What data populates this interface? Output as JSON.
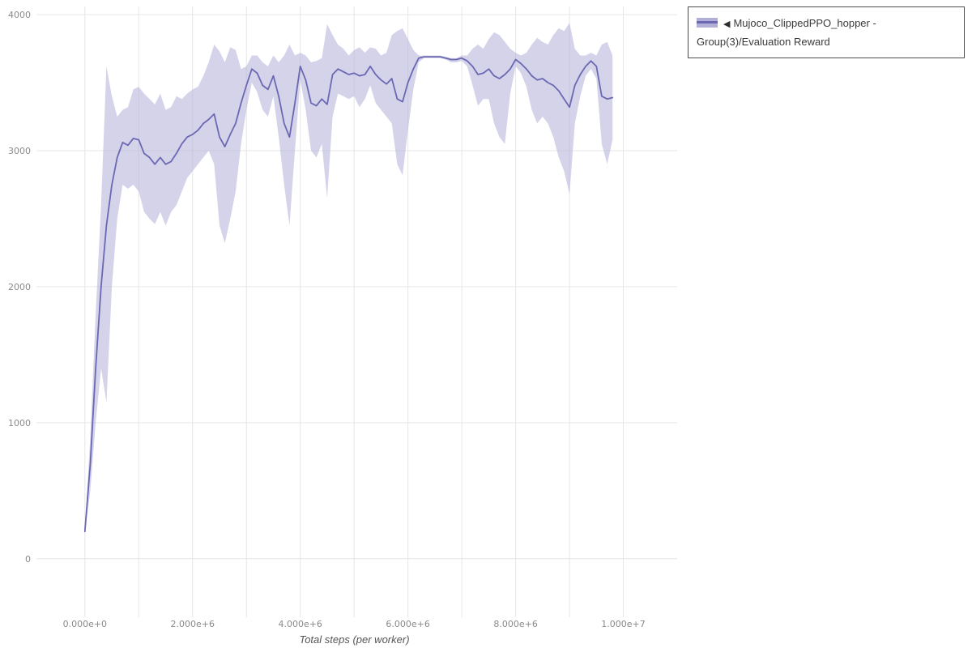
{
  "chart_data": {
    "type": "line",
    "title": "",
    "xlabel": "Total steps (per worker)",
    "ylabel": "",
    "grid": true,
    "legend_position": "top-right",
    "x_unit_multiplier": 1000000,
    "xlim": [
      -0.9,
      11.0
    ],
    "ylim": [
      -430,
      4060
    ],
    "x_ticks": [
      {
        "value": 0,
        "label": "0.000e+0"
      },
      {
        "value": 2,
        "label": "2.000e+6"
      },
      {
        "value": 4,
        "label": "4.000e+6"
      },
      {
        "value": 6,
        "label": "6.000e+6"
      },
      {
        "value": 8,
        "label": "8.000e+6"
      },
      {
        "value": 10,
        "label": "1.000e+7"
      }
    ],
    "y_ticks": [
      {
        "value": 0,
        "label": "0"
      },
      {
        "value": 1000,
        "label": "1000"
      },
      {
        "value": 2000,
        "label": "2000"
      },
      {
        "value": 3000,
        "label": "3000"
      },
      {
        "value": 4000,
        "label": "4000"
      }
    ],
    "series": [
      {
        "name": "Mujoco_ClippedPPO_hopper - Group(3)/Evaluation Reward",
        "color": "#6b68b2",
        "band_color": "#b1aed8",
        "band_opacity": 0.55,
        "x": [
          0.0,
          0.1,
          0.2,
          0.3,
          0.4,
          0.5,
          0.6,
          0.7,
          0.8,
          0.9,
          1.0,
          1.1,
          1.2,
          1.3,
          1.4,
          1.5,
          1.6,
          1.7,
          1.8,
          1.9,
          2.0,
          2.1,
          2.2,
          2.3,
          2.4,
          2.5,
          2.6,
          2.7,
          2.8,
          2.9,
          3.0,
          3.1,
          3.2,
          3.3,
          3.4,
          3.5,
          3.6,
          3.7,
          3.8,
          3.9,
          4.0,
          4.1,
          4.2,
          4.3,
          4.4,
          4.5,
          4.6,
          4.7,
          4.8,
          4.9,
          5.0,
          5.1,
          5.2,
          5.3,
          5.4,
          5.5,
          5.6,
          5.7,
          5.8,
          5.9,
          6.0,
          6.1,
          6.2,
          6.3,
          6.4,
          6.5,
          6.6,
          6.7,
          6.8,
          6.9,
          7.0,
          7.1,
          7.2,
          7.3,
          7.4,
          7.5,
          7.6,
          7.7,
          7.8,
          7.9,
          8.0,
          8.1,
          8.2,
          8.3,
          8.4,
          8.5,
          8.6,
          8.7,
          8.8,
          8.9,
          9.0,
          9.1,
          9.2,
          9.3,
          9.4,
          9.5,
          9.6,
          9.7,
          9.8
        ],
        "mean": [
          200,
          700,
          1400,
          2000,
          2450,
          2750,
          2950,
          3060,
          3040,
          3090,
          3080,
          2980,
          2950,
          2900,
          2950,
          2900,
          2920,
          2980,
          3050,
          3100,
          3120,
          3150,
          3200,
          3230,
          3270,
          3100,
          3030,
          3120,
          3200,
          3350,
          3480,
          3600,
          3570,
          3480,
          3450,
          3550,
          3400,
          3200,
          3100,
          3350,
          3620,
          3520,
          3350,
          3330,
          3380,
          3340,
          3560,
          3600,
          3580,
          3560,
          3570,
          3550,
          3560,
          3620,
          3560,
          3520,
          3490,
          3530,
          3380,
          3360,
          3500,
          3600,
          3680,
          3690,
          3690,
          3690,
          3690,
          3680,
          3670,
          3670,
          3680,
          3660,
          3620,
          3560,
          3570,
          3600,
          3550,
          3530,
          3560,
          3600,
          3670,
          3640,
          3600,
          3550,
          3520,
          3530,
          3500,
          3480,
          3440,
          3380,
          3320,
          3480,
          3560,
          3620,
          3660,
          3620,
          3400,
          3380,
          3390
        ],
        "low": [
          190,
          500,
          1000,
          1400,
          1150,
          2000,
          2500,
          2750,
          2720,
          2750,
          2700,
          2550,
          2500,
          2460,
          2550,
          2450,
          2550,
          2600,
          2700,
          2800,
          2850,
          2900,
          2950,
          3000,
          2900,
          2450,
          2320,
          2500,
          2700,
          3050,
          3300,
          3500,
          3430,
          3300,
          3250,
          3400,
          3100,
          2750,
          2450,
          3000,
          3520,
          3300,
          3000,
          2950,
          3050,
          2650,
          3250,
          3420,
          3400,
          3380,
          3400,
          3320,
          3380,
          3480,
          3350,
          3300,
          3250,
          3200,
          2900,
          2820,
          3150,
          3450,
          3650,
          3680,
          3680,
          3680,
          3680,
          3670,
          3650,
          3650,
          3660,
          3620,
          3480,
          3330,
          3380,
          3380,
          3200,
          3100,
          3050,
          3420,
          3620,
          3570,
          3470,
          3300,
          3200,
          3250,
          3200,
          3100,
          2950,
          2850,
          2680,
          3200,
          3400,
          3550,
          3600,
          3530,
          3050,
          2900,
          3080
        ],
        "high": [
          210,
          900,
          1800,
          2600,
          3620,
          3400,
          3250,
          3300,
          3320,
          3450,
          3470,
          3420,
          3380,
          3340,
          3420,
          3300,
          3320,
          3400,
          3380,
          3420,
          3450,
          3470,
          3550,
          3650,
          3780,
          3730,
          3650,
          3760,
          3740,
          3600,
          3620,
          3700,
          3700,
          3650,
          3620,
          3700,
          3650,
          3700,
          3780,
          3700,
          3720,
          3700,
          3650,
          3660,
          3680,
          3930,
          3850,
          3780,
          3750,
          3700,
          3740,
          3760,
          3720,
          3760,
          3750,
          3700,
          3720,
          3850,
          3880,
          3900,
          3820,
          3740,
          3700,
          3700,
          3700,
          3700,
          3700,
          3690,
          3680,
          3680,
          3700,
          3700,
          3750,
          3780,
          3750,
          3820,
          3870,
          3850,
          3800,
          3750,
          3720,
          3700,
          3720,
          3780,
          3830,
          3800,
          3780,
          3850,
          3900,
          3880,
          3940,
          3750,
          3700,
          3700,
          3720,
          3700,
          3780,
          3800,
          3700
        ]
      }
    ]
  },
  "legend": {
    "items": [
      {
        "marker": "◀",
        "label": "Mujoco_ClippedPPO_hopper - Group(3)/Evaluation Reward"
      }
    ]
  },
  "colors": {
    "line": "#6b68b2",
    "band": "#b1aed8",
    "grid": "#e6e6e6",
    "tick_label": "#8a8a8a",
    "axis_title": "#555555"
  }
}
